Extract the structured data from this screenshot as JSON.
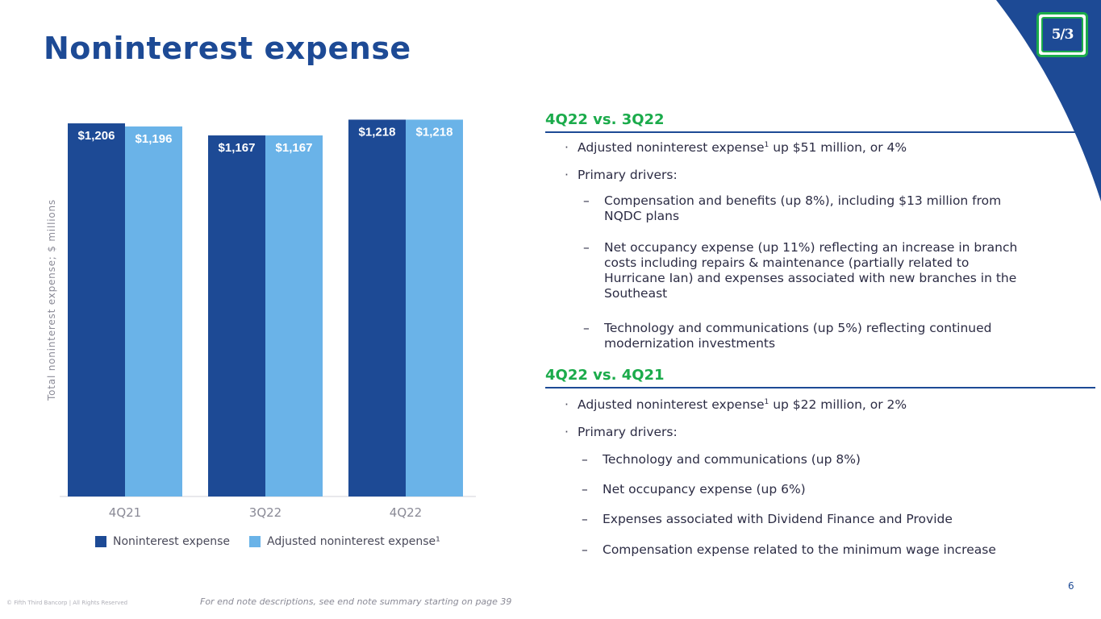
{
  "header": {
    "title": "Noninterest expense",
    "logo_text": "5/3"
  },
  "colors": {
    "primary_blue": "#1d4a95",
    "light_blue": "#6ab3e8",
    "accent_green": "#1bab4b"
  },
  "chart_data": {
    "type": "bar",
    "title": "",
    "xlabel": "",
    "ylabel": "Total noninterest expense; $ millions",
    "categories": [
      "4Q21",
      "3Q22",
      "4Q22"
    ],
    "series": [
      {
        "name": "Noninterest expense",
        "values": [
          1206,
          1167,
          1218
        ],
        "labels": [
          "$1,206",
          "$1,167",
          "$1,218"
        ]
      },
      {
        "name": "Adjusted noninterest expense¹",
        "values": [
          1196,
          1167,
          1218
        ],
        "labels": [
          "$1,196",
          "$1,167",
          "$1,218"
        ]
      }
    ],
    "ylim": [
      0,
      1240
    ],
    "grid": false,
    "legend": "bottom"
  },
  "sections": [
    {
      "heading": "4Q22 vs. 3Q22",
      "bullets": [
        {
          "dot": "·",
          "text": "Adjusted noninterest expense",
          "sup": "1",
          "text2": " up $51 million, or 4%"
        },
        {
          "dot": "·",
          "text": "Primary drivers:"
        }
      ],
      "subs": [
        {
          "dash": "–",
          "lines": [
            "Compensation and benefits (up 8%), including $13 million from",
            "NQDC plans"
          ]
        },
        {
          "dash": "–",
          "lines": [
            "Net occupancy expense (up 11%) reflecting an increase in branch",
            "costs including repairs & maintenance (partially related to",
            "Hurricane Ian) and expenses associated with new branches in the",
            "Southeast"
          ]
        },
        {
          "dash": "–",
          "lines": [
            "Technology and communications (up 5%) reflecting continued",
            "modernization investments"
          ]
        }
      ]
    },
    {
      "heading": "4Q22 vs. 4Q21",
      "bullets": [
        {
          "dot": "·",
          "text": "Adjusted noninterest expense",
          "sup": "1",
          "text2": " up $22 million, or 2%"
        },
        {
          "dot": "·",
          "text": "Primary drivers:"
        }
      ],
      "subs": [
        {
          "dash": "–",
          "lines": [
            "Technology and communications (up 8%)"
          ]
        },
        {
          "dash": "–",
          "lines": [
            "Net occupancy expense (up 6%)"
          ]
        },
        {
          "dash": "–",
          "lines": [
            "Expenses associated with Dividend Finance and Provide"
          ]
        },
        {
          "dash": "–",
          "lines": [
            "Compensation expense related to the minimum wage increase"
          ]
        }
      ]
    }
  ],
  "footer": {
    "copyright": "© Fifth Third Bancorp | All Rights Reserved",
    "footnote": "For end note descriptions, see end note summary starting on page 39",
    "page_number": "6"
  }
}
